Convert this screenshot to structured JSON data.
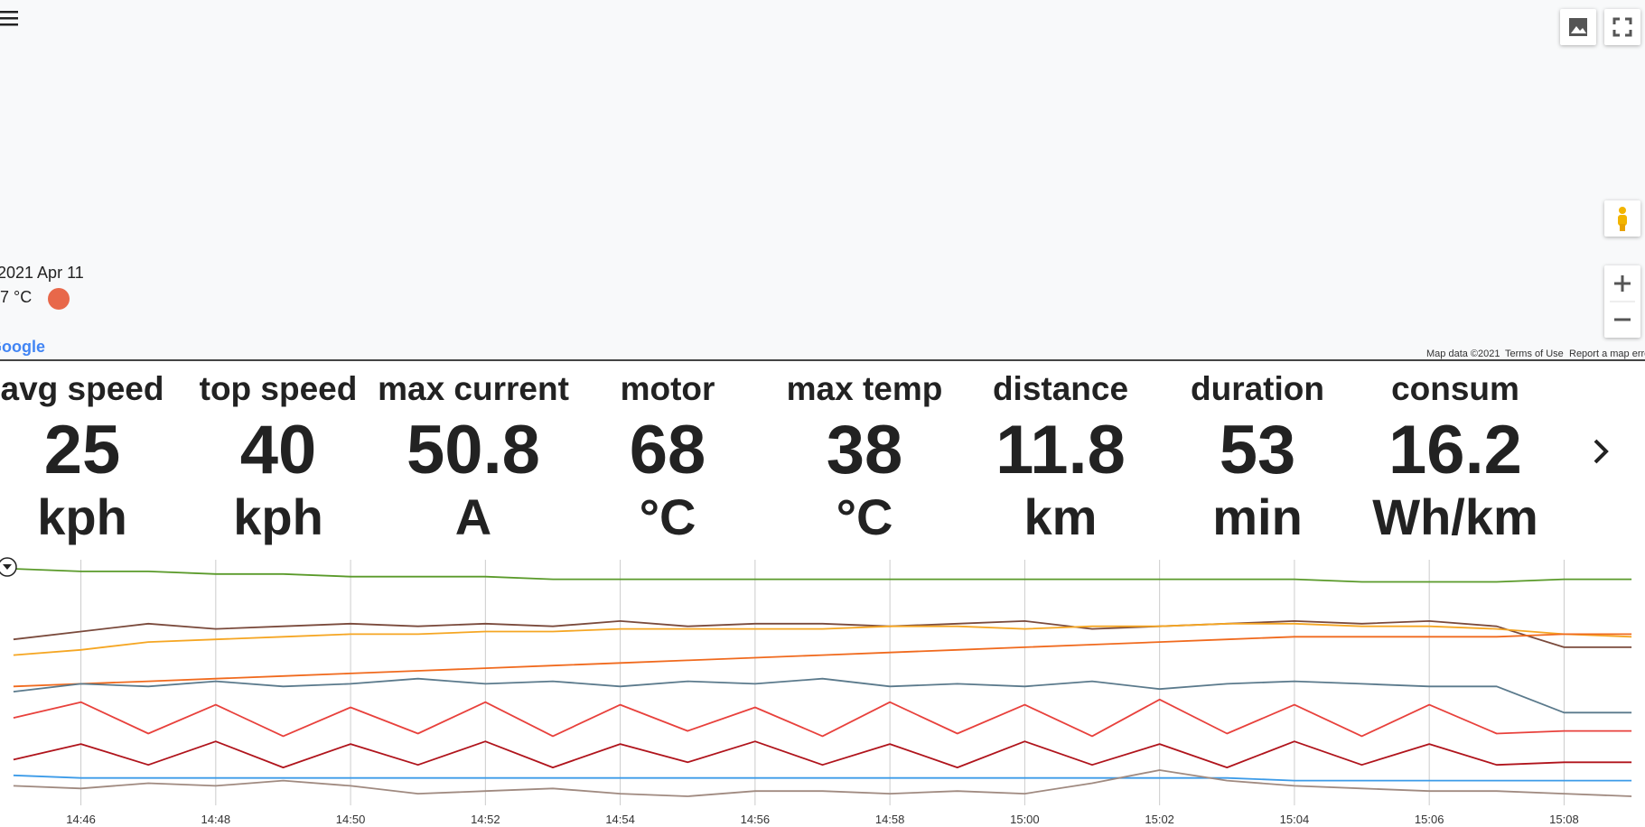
{
  "map": {
    "date": "2021 Apr 11",
    "temperature": "7 °C",
    "logo": "Google",
    "map_data": "Map data ©2021",
    "terms": "Terms of Use",
    "report": "Report a map error"
  },
  "stats": [
    {
      "label": "avg speed",
      "value": 25,
      "unit": "kph"
    },
    {
      "label": "top speed",
      "value": 40,
      "unit": "kph"
    },
    {
      "label": "max current",
      "value": 50.8,
      "unit": "A"
    },
    {
      "label": "motor",
      "value": 68,
      "unit": "°C"
    },
    {
      "label": "max temp",
      "value": 38,
      "unit": "°C"
    },
    {
      "label": "distance",
      "value": 11.8,
      "unit": "km"
    },
    {
      "label": "duration",
      "value": 53,
      "unit": "min"
    },
    {
      "label": "consum",
      "value": 16.2,
      "unit": "Wh/km"
    }
  ],
  "chart_data": {
    "type": "line",
    "x": [
      885,
      886,
      887,
      888,
      889,
      890,
      891,
      892,
      893,
      894,
      895,
      896,
      897,
      898,
      899,
      900,
      901,
      902,
      903,
      904,
      905,
      906,
      907,
      908,
      909
    ],
    "xlim": [
      884.8,
      909.2
    ],
    "xticks": [
      {
        "value": 886,
        "label": "14:46"
      },
      {
        "value": 888,
        "label": "14:48"
      },
      {
        "value": 890,
        "label": "14:50"
      },
      {
        "value": 892,
        "label": "14:52"
      },
      {
        "value": 894,
        "label": "14:54"
      },
      {
        "value": 896,
        "label": "14:56"
      },
      {
        "value": 898,
        "label": "14:58"
      },
      {
        "value": 900,
        "label": "15:00"
      },
      {
        "value": 902,
        "label": "15:02"
      },
      {
        "value": 904,
        "label": "15:04"
      },
      {
        "value": 906,
        "label": "15:06"
      },
      {
        "value": 908,
        "label": "15:08"
      }
    ],
    "grid": true,
    "series": [
      {
        "color": "#5a9a2a",
        "values": [
          97,
          96,
          96,
          95,
          95,
          94,
          94,
          94,
          93,
          93,
          93,
          93,
          93,
          93,
          93,
          93,
          93,
          93,
          93,
          93,
          92,
          92,
          92,
          93,
          93
        ]
      },
      {
        "color": "#7a4a3c",
        "values": [
          70,
          73,
          76,
          74,
          75,
          76,
          75,
          76,
          75,
          77,
          75,
          76,
          76,
          75,
          76,
          77,
          74,
          75,
          76,
          77,
          76,
          77,
          75,
          67,
          67
        ]
      },
      {
        "color": "#f5a623",
        "values": [
          64,
          66,
          69,
          70,
          71,
          72,
          72,
          73,
          73,
          74,
          74,
          74,
          74,
          75,
          75,
          74,
          75,
          75,
          76,
          76,
          75,
          75,
          74,
          72,
          71
        ]
      },
      {
        "color": "#f06a1e",
        "values": [
          52,
          53,
          54,
          55,
          56,
          57,
          58,
          59,
          60,
          61,
          62,
          63,
          64,
          65,
          66,
          67,
          68,
          69,
          70,
          71,
          71,
          71,
          71,
          72,
          72
        ]
      },
      {
        "color": "#5b7a8c",
        "values": [
          50,
          53,
          52,
          54,
          52,
          53,
          55,
          53,
          54,
          52,
          54,
          53,
          55,
          52,
          53,
          52,
          54,
          51,
          53,
          54,
          53,
          52,
          52,
          42,
          42
        ]
      },
      {
        "color": "#e8413c",
        "values": [
          40,
          46,
          34,
          45,
          33,
          44,
          34,
          46,
          33,
          45,
          35,
          44,
          33,
          46,
          34,
          45,
          33,
          47,
          34,
          45,
          33,
          45,
          34,
          35,
          35
        ]
      },
      {
        "color": "#b0141c",
        "values": [
          24,
          30,
          22,
          31,
          21,
          30,
          22,
          31,
          21,
          30,
          23,
          31,
          22,
          30,
          21,
          31,
          22,
          30,
          21,
          31,
          22,
          30,
          22,
          23,
          23
        ]
      },
      {
        "color": "#3c9be8",
        "values": [
          18,
          17,
          17,
          17,
          17,
          17,
          17,
          17,
          17,
          17,
          17,
          17,
          17,
          17,
          17,
          17,
          17,
          17,
          17,
          16,
          16,
          16,
          16,
          16,
          16
        ]
      },
      {
        "color": "#a08a80",
        "values": [
          14,
          13,
          15,
          14,
          16,
          14,
          11,
          12,
          13,
          11,
          10,
          12,
          12,
          11,
          12,
          11,
          15,
          20,
          16,
          14,
          13,
          12,
          12,
          11,
          10
        ]
      }
    ]
  }
}
